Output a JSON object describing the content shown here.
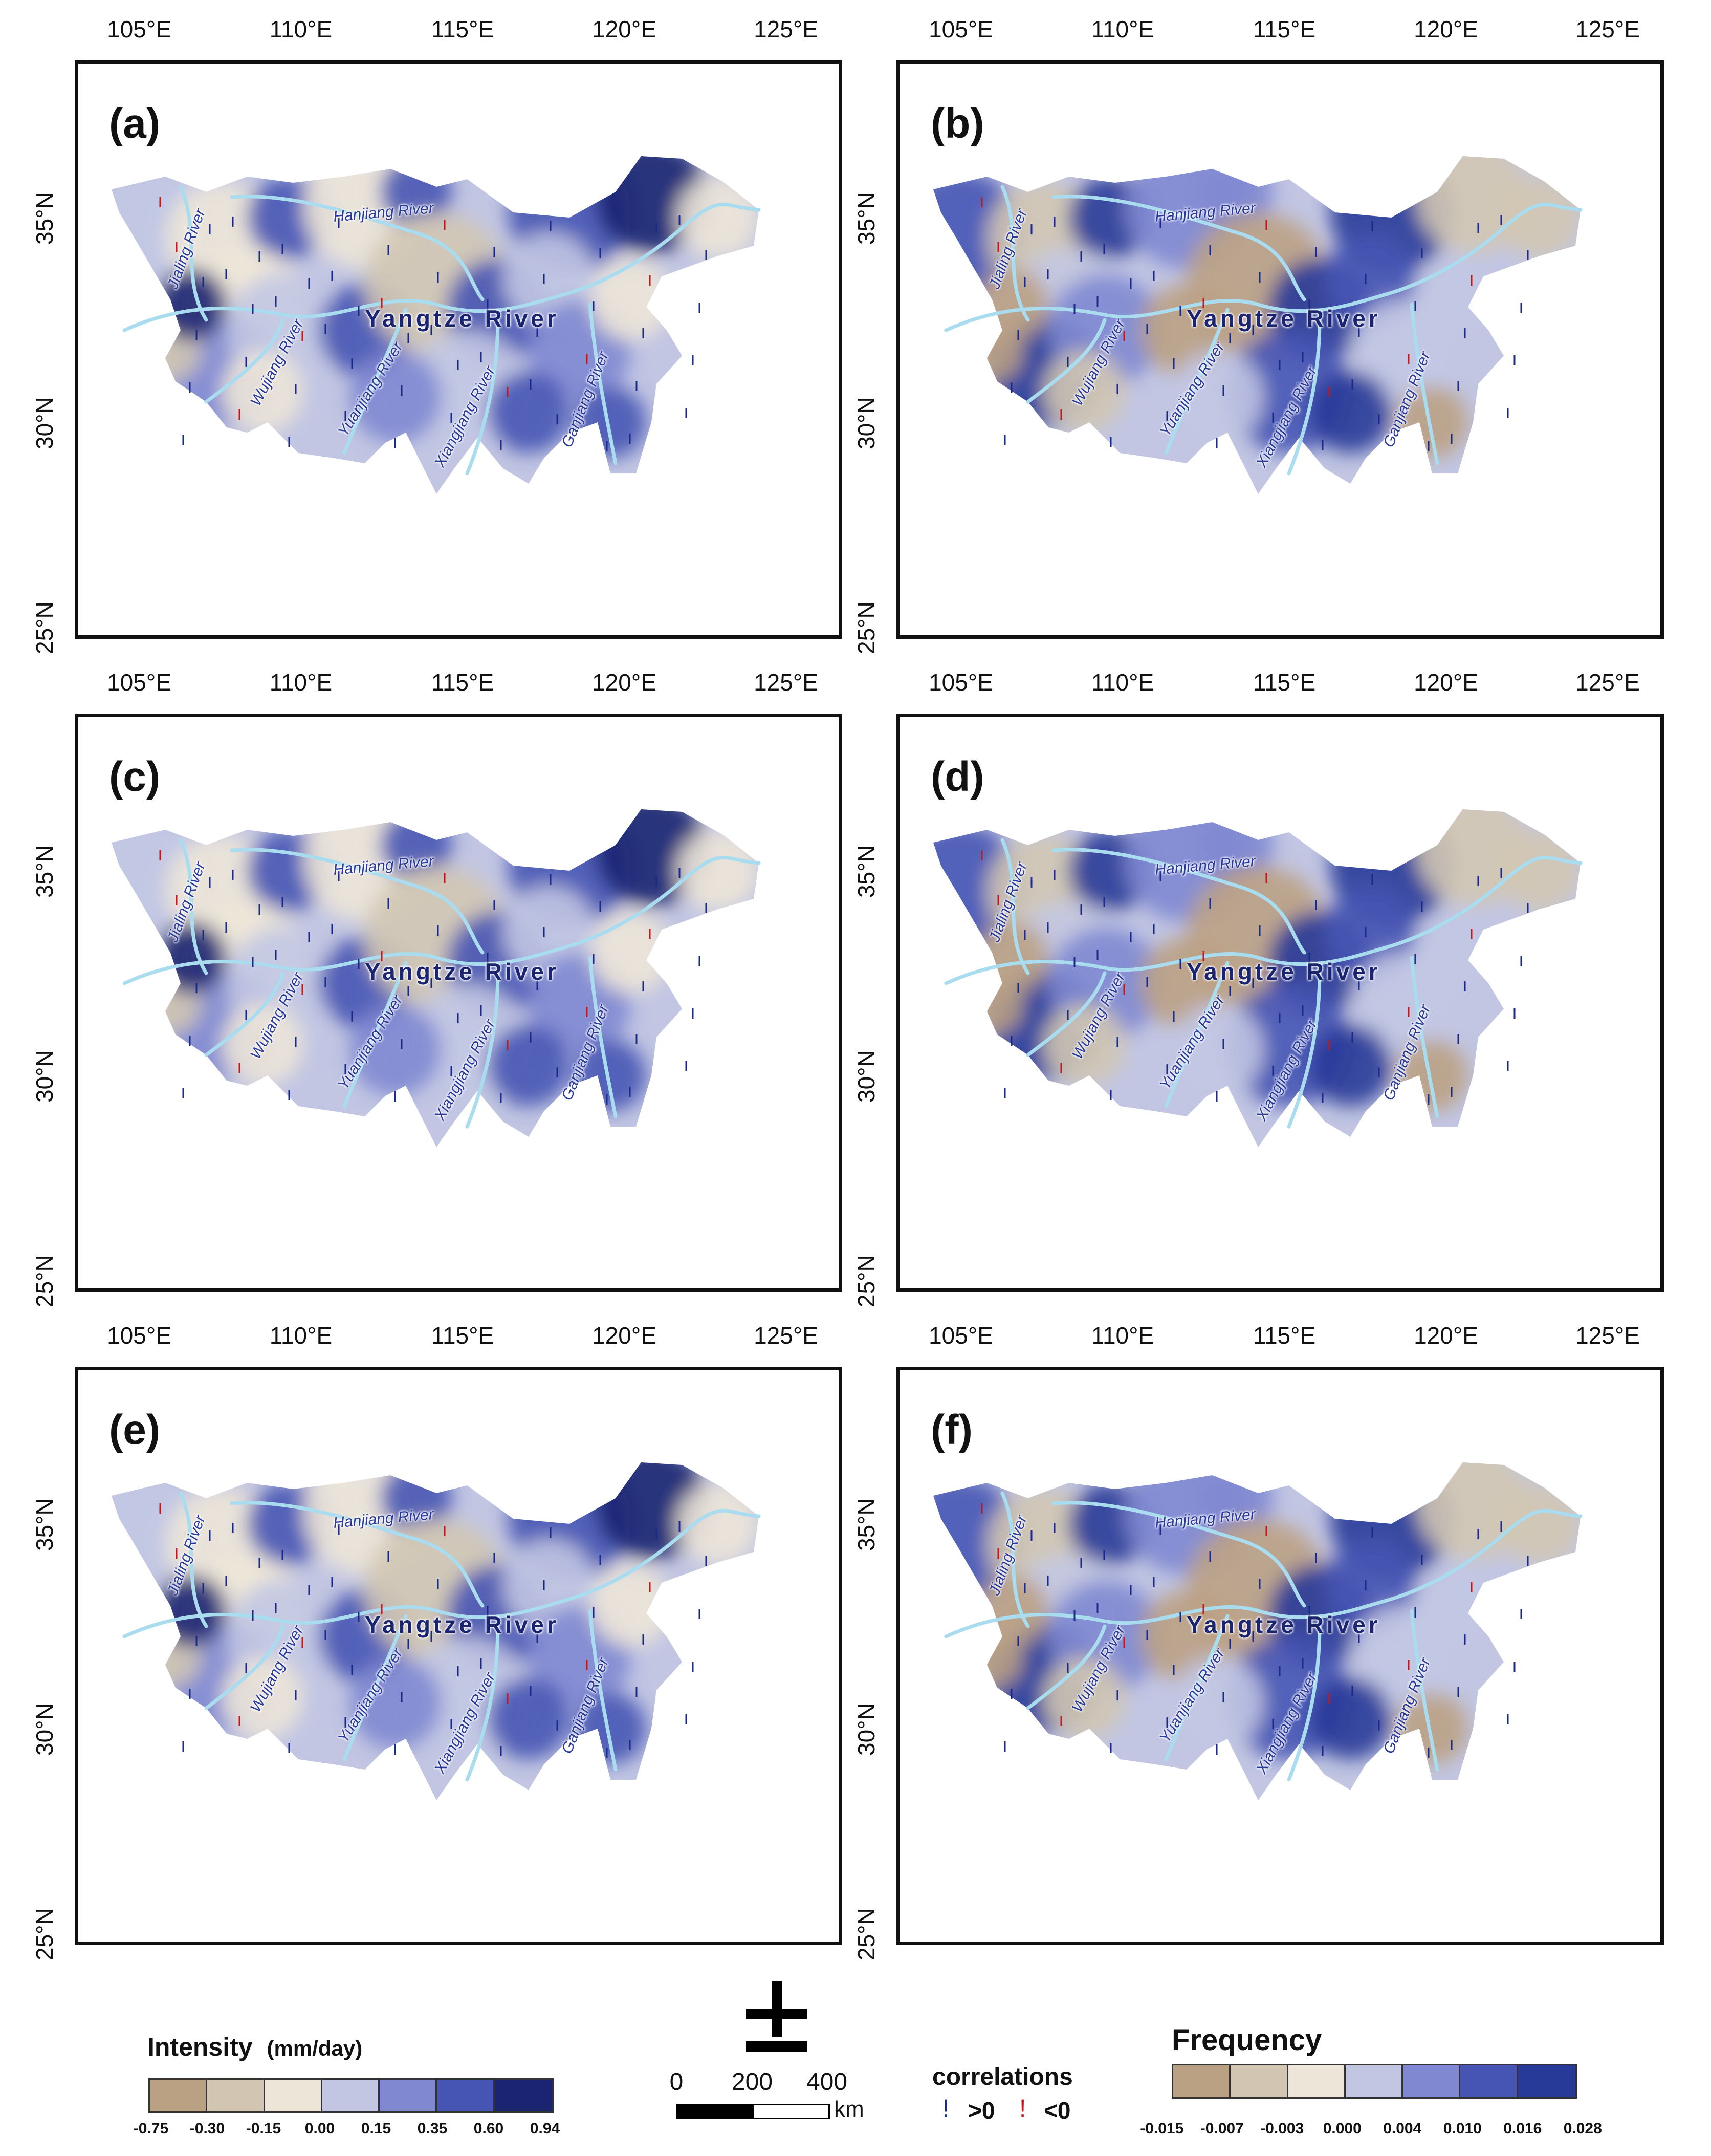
{
  "axes": {
    "lon_labels": [
      "105°E",
      "110°E",
      "115°E",
      "120°E",
      "125°E"
    ],
    "lat_labels": [
      "35°N",
      "30°N",
      "25°N"
    ]
  },
  "panels": [
    {
      "id": "a",
      "label": "(a)"
    },
    {
      "id": "b",
      "label": "(b)"
    },
    {
      "id": "c",
      "label": "(c)"
    },
    {
      "id": "d",
      "label": "(d)"
    },
    {
      "id": "e",
      "label": "(e)"
    },
    {
      "id": "f",
      "label": "(f)"
    }
  ],
  "rivers": {
    "main": "Yangtze River",
    "hanjiang": "Hanjiang River",
    "jialing": "Jialing River",
    "wujiang": "Wujiang River",
    "yuanjiang": "Yuanjiang River",
    "xiangjiang": "Xiangjiang River",
    "ganjiang": "Ganjiang River"
  },
  "legend_intensity": {
    "title": "Intensity",
    "unit": "(mm/day)",
    "breaks": [
      "-0.75",
      "-0.30",
      "-0.15",
      "0.00",
      "0.15",
      "0.35",
      "0.60",
      "0.94"
    ],
    "colors": [
      "#bba184",
      "#d2c6b2",
      "#ede6d8",
      "#c2c6e3",
      "#8088d2",
      "#4654b4",
      "#1b2470"
    ]
  },
  "legend_frequency": {
    "title": "Frequency",
    "breaks": [
      "-0.015",
      "-0.007",
      "-0.003",
      "0.000",
      "0.004",
      "0.010",
      "0.016",
      "0.028"
    ],
    "colors": [
      "#bba184",
      "#d2c6b2",
      "#ede6d8",
      "#c2c6e3",
      "#8088d2",
      "#4654b4",
      "#283a98"
    ]
  },
  "scale_bar": {
    "ticks": [
      "0",
      "200",
      "400"
    ],
    "unit": "km"
  },
  "correlations": {
    "title": "correlations",
    "positive": ">0",
    "negative": "<0",
    "positive_color": "#1a2a8a",
    "negative_color": "#c0181c"
  },
  "north_arrow": "north-arrow-icon"
}
